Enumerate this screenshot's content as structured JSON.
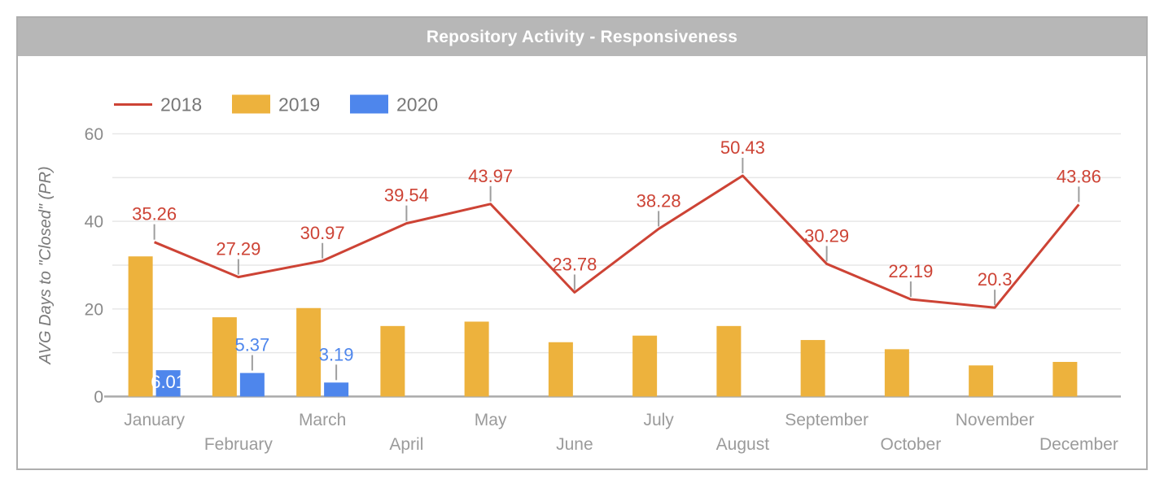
{
  "header": {
    "title": "Repository Activity - Responsiveness"
  },
  "chart_data": {
    "type": "combo",
    "title": "Repository Activity - Responsiveness",
    "categories": [
      "January",
      "February",
      "March",
      "April",
      "May",
      "June",
      "July",
      "August",
      "September",
      "October",
      "November",
      "December"
    ],
    "series": [
      {
        "name": "2018",
        "type": "line",
        "color": "#cd4335",
        "values": [
          35.26,
          27.29,
          30.97,
          39.54,
          43.97,
          23.78,
          38.28,
          50.43,
          30.29,
          22.19,
          20.3,
          43.86
        ],
        "labels": [
          "35.26",
          "27.29",
          "30.97",
          "39.54",
          "43.97",
          "23.78",
          "38.28",
          "50.43",
          "30.29",
          "22.19",
          "20.3",
          "43.86"
        ]
      },
      {
        "name": "2019",
        "type": "bar",
        "color": "#edb23d",
        "values": [
          32,
          18.1,
          20.2,
          16.1,
          17.1,
          12.4,
          13.9,
          16.1,
          12.9,
          10.8,
          7.1,
          7.9
        ],
        "values_estimated": true,
        "labels": [
          null,
          null,
          null,
          null,
          null,
          null,
          null,
          null,
          null,
          null,
          null,
          null
        ]
      },
      {
        "name": "2020",
        "type": "bar",
        "color": "#4e86ec",
        "values": [
          6.01,
          5.37,
          3.19,
          null,
          null,
          null,
          null,
          null,
          null,
          null,
          null,
          null
        ],
        "labels": [
          "6.01",
          "5.37",
          "3.19",
          null,
          null,
          null,
          null,
          null,
          null,
          null,
          null,
          null
        ],
        "label_placements": [
          "inside",
          "above",
          "above",
          null,
          null,
          null,
          null,
          null,
          null,
          null,
          null,
          null
        ]
      }
    ],
    "xlabel": "",
    "ylabel": "AVG Days to \"Closed\" (PR)",
    "ylim": [
      0,
      60
    ],
    "yticks": [
      0,
      20,
      40,
      60
    ],
    "gridline_step": 10,
    "grid": true,
    "legend_position": "top-left",
    "colors": {
      "grid": "#e7e7e7",
      "axis_line": "#aaaaaa",
      "callout_stem": "#9e9e9e",
      "tick_text": "#8b8b8b",
      "month_text": "#9b9b9b",
      "legend_text": "#777777",
      "axis_title_text": "#7a7a7a",
      "inside_label_text": "#ffffff",
      "title_bar": "#b7b7b7",
      "title_text": "#ffffff"
    }
  }
}
